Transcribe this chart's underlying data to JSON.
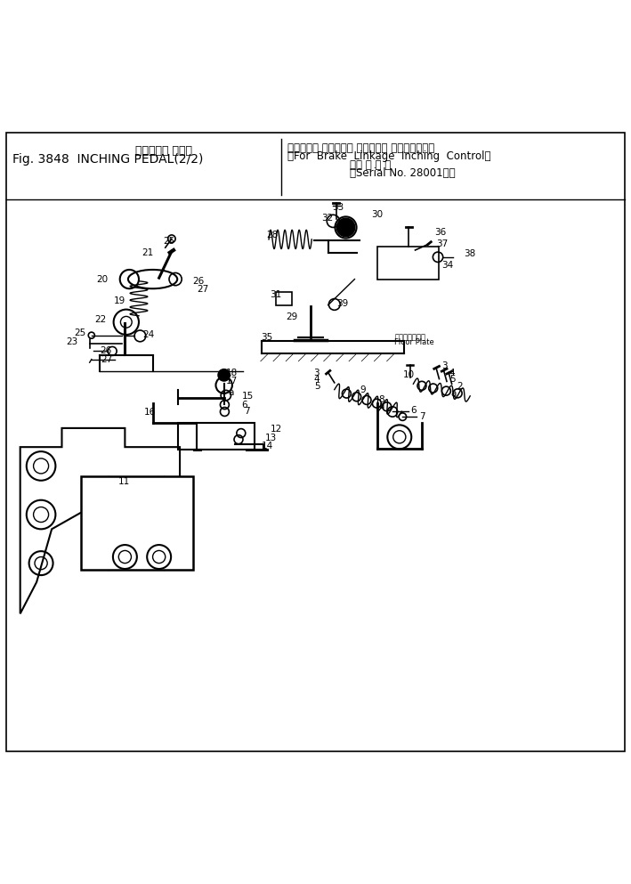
{
  "title_line1_jp": "インチング ペダル",
  "title_line1_en": "Fig. 3848  INCHING PEDAL(2/2)",
  "title_right_line1_jp": "（ブレーキ リンケージ インチング コントロール用",
  "title_right_line1_en": "（For  Brake  Linkage  Inching  Control）",
  "title_right_line2_jp": "（適 用 号 機",
  "title_right_line2_en": "（Serial No. 28001～）",
  "bg_color": "#ffffff",
  "line_color": "#000000",
  "text_color": "#000000",
  "fig_width": 7.09,
  "fig_height": 9.93,
  "dpi": 100
}
